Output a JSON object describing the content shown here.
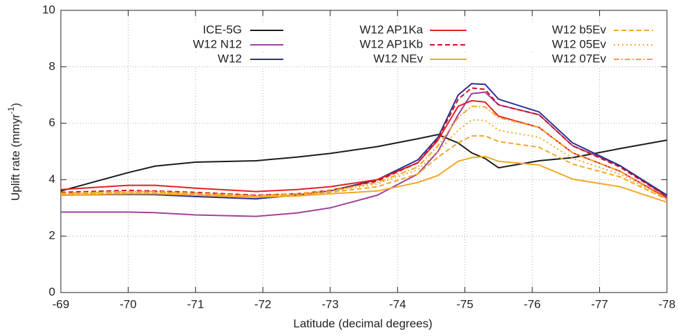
{
  "chart_data": {
    "type": "line",
    "xlabel": "Latitude (decimal degrees)",
    "ylabel": {
      "text": "Uplift rate (mmyr",
      "sup": "-1",
      "close": ")"
    },
    "xlim": [
      -69,
      -78
    ],
    "xticks": [
      -69,
      -70,
      -71,
      -72,
      -73,
      -74,
      -75,
      -76,
      -77,
      -78
    ],
    "ylim": [
      0,
      10
    ],
    "yticks": [
      0,
      2,
      4,
      6,
      8,
      10
    ],
    "grid": true,
    "legend": "top",
    "x": [
      -69,
      -70,
      -70.4,
      -71,
      -71.9,
      -72.5,
      -73,
      -73.7,
      -74.3,
      -74.6,
      -74.9,
      -75.1,
      -75.3,
      -75.5,
      -76.1,
      -76.6,
      -77.3,
      -78
    ],
    "series": [
      {
        "name": "ICE-5G",
        "color": "#1a1a1a",
        "dash": "solid",
        "values": [
          3.6,
          4.25,
          4.48,
          4.62,
          4.67,
          4.8,
          4.93,
          5.17,
          5.45,
          5.6,
          5.3,
          4.95,
          4.75,
          4.42,
          4.67,
          4.78,
          5.1,
          5.4
        ]
      },
      {
        "name": "W12 N12",
        "color": "#a0409a",
        "dash": "solid",
        "values": [
          2.85,
          2.85,
          2.83,
          2.75,
          2.7,
          2.82,
          3.0,
          3.45,
          4.2,
          5.0,
          6.3,
          7.05,
          7.1,
          6.65,
          6.3,
          5.2,
          4.5,
          3.4
        ]
      },
      {
        "name": "W12",
        "color": "#2b2f8f",
        "dash": "solid",
        "values": [
          3.45,
          3.48,
          3.47,
          3.4,
          3.32,
          3.45,
          3.6,
          4.0,
          4.7,
          5.5,
          7.0,
          7.4,
          7.38,
          6.85,
          6.4,
          5.3,
          4.5,
          3.45
        ]
      },
      {
        "name": "W12 AP1Ka",
        "color": "#e02020",
        "dash": "solid",
        "values": [
          3.65,
          3.8,
          3.8,
          3.7,
          3.58,
          3.65,
          3.75,
          4.0,
          4.6,
          5.4,
          6.6,
          6.8,
          6.75,
          6.25,
          5.85,
          4.95,
          4.3,
          3.35
        ]
      },
      {
        "name": "W12 AP1Kb",
        "color": "#cc1020",
        "dash": "dashed",
        "values": [
          3.55,
          3.62,
          3.6,
          3.55,
          3.45,
          3.5,
          3.62,
          3.95,
          4.6,
          5.45,
          6.85,
          7.25,
          7.2,
          6.65,
          6.3,
          5.2,
          4.45,
          3.4
        ]
      },
      {
        "name": "W12 NEv",
        "color": "#f5a623",
        "dash": "solid",
        "values": [
          3.45,
          3.5,
          3.5,
          3.45,
          3.38,
          3.42,
          3.5,
          3.6,
          3.9,
          4.15,
          4.65,
          4.78,
          4.82,
          4.65,
          4.52,
          4.02,
          3.75,
          3.2
        ]
      },
      {
        "name": "W12 b5Ev",
        "color": "#f5a623",
        "dash": "dashed",
        "values": [
          3.5,
          3.55,
          3.55,
          3.5,
          3.4,
          3.45,
          3.55,
          3.75,
          4.2,
          4.8,
          5.3,
          5.55,
          5.55,
          5.35,
          5.15,
          4.55,
          4.1,
          3.3
        ]
      },
      {
        "name": "W12 05Ev",
        "color": "#f5a623",
        "dash": "dotted",
        "values": [
          3.5,
          3.55,
          3.55,
          3.5,
          3.42,
          3.48,
          3.58,
          3.85,
          4.35,
          5.0,
          5.75,
          6.12,
          6.1,
          5.75,
          5.5,
          4.75,
          4.2,
          3.3
        ]
      },
      {
        "name": "W12 07Ev",
        "color": "#f5a623",
        "dash": "dashdot",
        "values": [
          3.52,
          3.58,
          3.58,
          3.52,
          3.43,
          3.5,
          3.6,
          3.9,
          4.45,
          5.2,
          6.2,
          6.6,
          6.58,
          6.2,
          5.85,
          4.95,
          4.3,
          3.32
        ]
      }
    ]
  }
}
